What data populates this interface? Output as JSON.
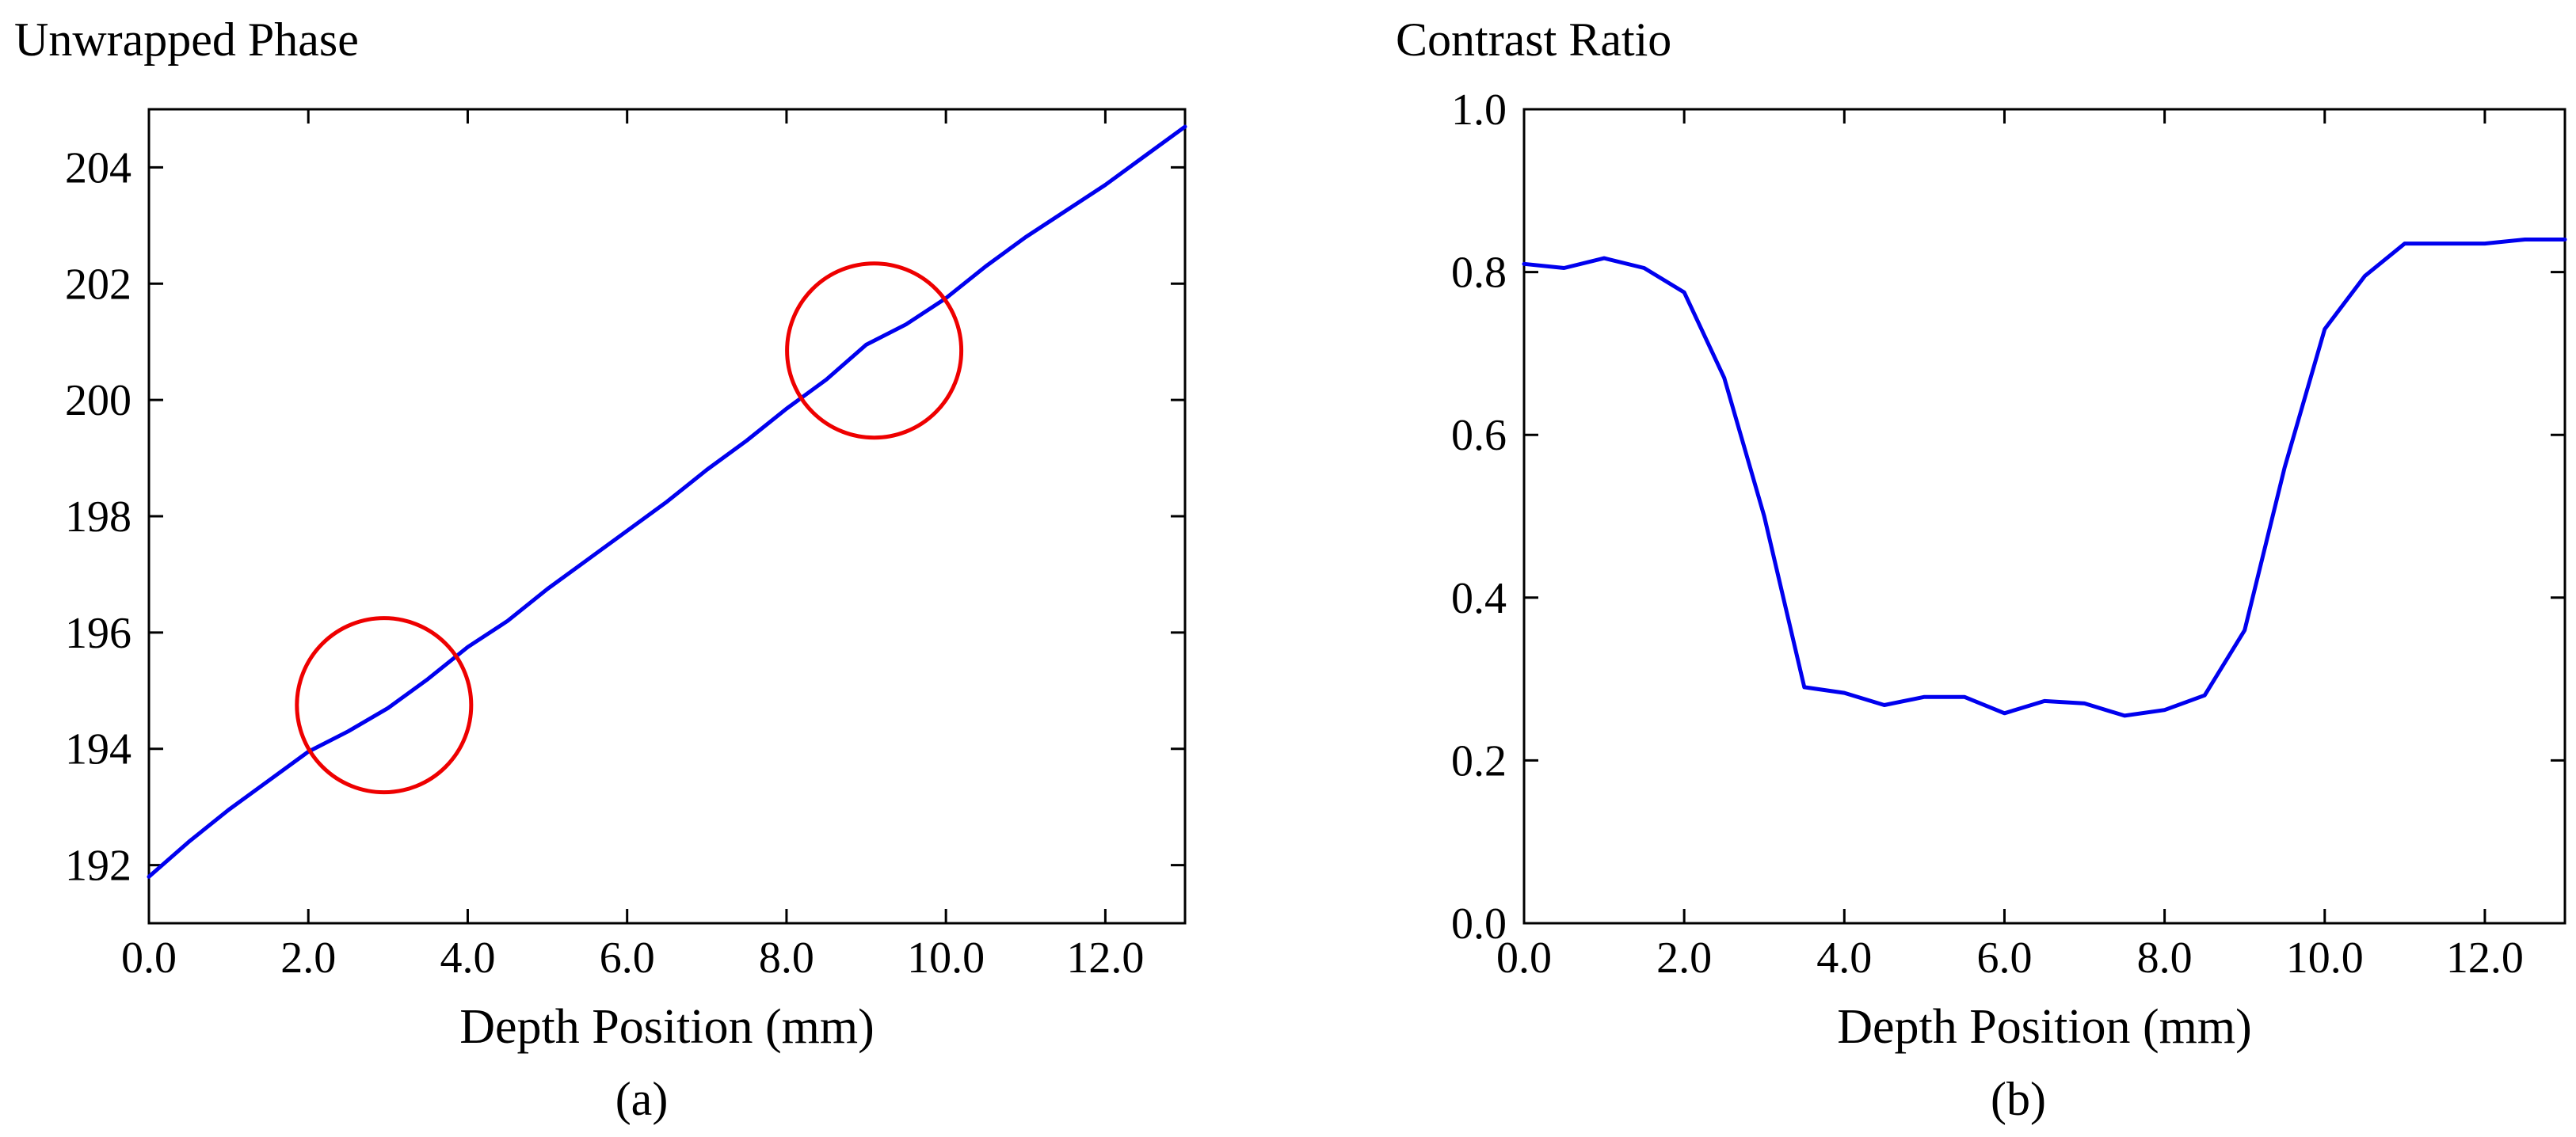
{
  "chart_data": [
    {
      "type": "line",
      "title": "Unwrapped Phase",
      "xlabel": "Depth Position (mm)",
      "ylabel": "",
      "caption": "(a)",
      "xlim": [
        0,
        13
      ],
      "ylim": [
        191,
        205
      ],
      "xticks": [
        0,
        2,
        4,
        6,
        8,
        10,
        12
      ],
      "xtick_labels": [
        "0.0",
        "2.0",
        "4.0",
        "6.0",
        "8.0",
        "10.0",
        "12.0"
      ],
      "yticks": [
        192,
        194,
        196,
        198,
        200,
        202,
        204
      ],
      "ytick_labels": [
        "192",
        "194",
        "196",
        "198",
        "200",
        "202",
        "204"
      ],
      "series": [
        {
          "name": "Unwrapped Phase",
          "color": "#0000ee",
          "x": [
            0,
            0.5,
            1,
            1.5,
            2,
            2.5,
            3,
            3.5,
            4,
            4.5,
            5,
            5.5,
            6,
            6.5,
            7,
            7.5,
            8,
            8.5,
            9,
            9.5,
            10,
            10.5,
            11,
            11.5,
            12,
            12.5,
            13
          ],
          "y": [
            191.8,
            192.4,
            192.95,
            193.45,
            193.95,
            194.3,
            194.7,
            195.2,
            195.75,
            196.2,
            196.75,
            197.25,
            197.75,
            198.25,
            198.8,
            199.3,
            199.85,
            200.35,
            200.95,
            201.3,
            201.75,
            202.3,
            202.8,
            203.25,
            203.7,
            204.2,
            204.7
          ]
        }
      ],
      "annotations": [
        {
          "type": "circle",
          "x": 2.95,
          "y": 194.75,
          "color": "#ee0000"
        },
        {
          "type": "circle",
          "x": 9.1,
          "y": 200.85,
          "color": "#ee0000"
        }
      ]
    },
    {
      "type": "line",
      "title": "Contrast Ratio",
      "xlabel": "Depth Position (mm)",
      "ylabel": "",
      "caption": "(b)",
      "xlim": [
        0,
        13
      ],
      "ylim": [
        0,
        1
      ],
      "xticks": [
        0,
        2,
        4,
        6,
        8,
        10,
        12
      ],
      "xtick_labels": [
        "0.0",
        "2.0",
        "4.0",
        "6.0",
        "8.0",
        "10.0",
        "12.0"
      ],
      "yticks": [
        0,
        0.2,
        0.4,
        0.6,
        0.8,
        1.0
      ],
      "ytick_labels": [
        "0.0",
        "0.2",
        "0.4",
        "0.6",
        "0.8",
        "1.0"
      ],
      "series": [
        {
          "name": "Contrast Ratio",
          "color": "#0000ee",
          "x": [
            0,
            0.5,
            1,
            1.5,
            2,
            2.5,
            3,
            3.5,
            4,
            4.5,
            5,
            5.5,
            6,
            6.5,
            7,
            7.5,
            8,
            8.5,
            9,
            9.5,
            10,
            10.5,
            11,
            11.5,
            12,
            12.5,
            13
          ],
          "y": [
            0.81,
            0.805,
            0.817,
            0.805,
            0.775,
            0.67,
            0.5,
            0.29,
            0.283,
            0.268,
            0.278,
            0.278,
            0.258,
            0.273,
            0.27,
            0.255,
            0.262,
            0.28,
            0.36,
            0.56,
            0.73,
            0.795,
            0.835,
            0.835,
            0.835,
            0.84,
            0.84
          ]
        }
      ]
    }
  ]
}
